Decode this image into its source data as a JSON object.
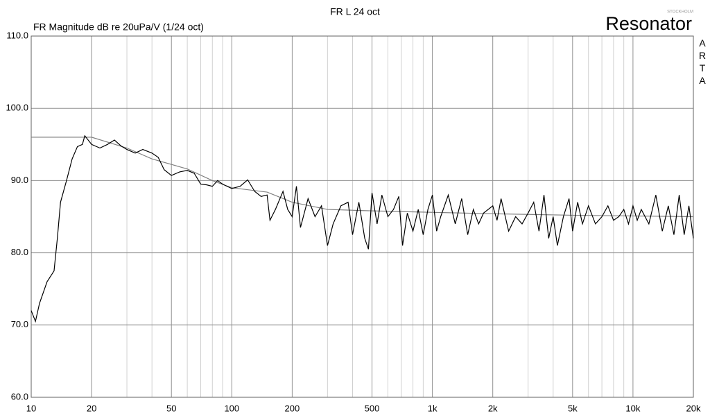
{
  "chart_data": {
    "type": "line",
    "title": "FR L  24 oct",
    "ylabel": "FR Magnitude dB re 20uPa/V (1/24 oct)",
    "brand": "Resonator",
    "brand_sub": "STOCKHOLM",
    "side_label": "ARTA",
    "xscale": "log",
    "grid": true,
    "xlim": [
      10,
      20000
    ],
    "ylim": [
      60,
      110
    ],
    "xticks": [
      10,
      20,
      50,
      100,
      200,
      500,
      {
        "value": 1000,
        "label": "1k"
      },
      {
        "value": 2000,
        "label": "2k"
      },
      {
        "value": 5000,
        "label": "5k"
      },
      {
        "value": 10000,
        "label": "10k"
      },
      {
        "value": 20000,
        "label": "20k"
      }
    ],
    "xminor_ticks": [
      30,
      40,
      60,
      70,
      80,
      90,
      300,
      400,
      600,
      700,
      800,
      900,
      3000,
      4000,
      6000,
      7000,
      8000,
      9000
    ],
    "yticks": [
      {
        "value": 60,
        "label": "60.0"
      },
      {
        "value": 70,
        "label": "70.0"
      },
      {
        "value": 80,
        "label": "80.0"
      },
      {
        "value": 90,
        "label": "90.0"
      },
      {
        "value": 100,
        "label": "100.0"
      },
      {
        "value": 110,
        "label": "110.0"
      }
    ],
    "series": [
      {
        "color": "#808080",
        "x": [
          10,
          20,
          30,
          40,
          60,
          80,
          100,
          150,
          200,
          300,
          500,
          1000,
          2000,
          5000,
          20000
        ],
        "values": [
          96,
          96,
          94.5,
          93,
          91.6,
          90,
          89,
          88.4,
          87,
          86,
          85.8,
          85.6,
          85.4,
          85.2,
          85
        ]
      },
      {
        "color": "#000000",
        "x": [
          10,
          10.5,
          11,
          12,
          13,
          13.5,
          14,
          15,
          16,
          17,
          18,
          18.5,
          20,
          22,
          24,
          26,
          28,
          30,
          33,
          36,
          40,
          43,
          46,
          50,
          55,
          60,
          65,
          70,
          75,
          80,
          85,
          90,
          100,
          110,
          120,
          130,
          140,
          150,
          155,
          165,
          180,
          190,
          200,
          210,
          220,
          240,
          260,
          280,
          300,
          320,
          350,
          380,
          400,
          430,
          460,
          480,
          500,
          530,
          560,
          600,
          640,
          680,
          710,
          750,
          800,
          850,
          900,
          950,
          1000,
          1050,
          1100,
          1200,
          1300,
          1400,
          1500,
          1600,
          1700,
          1800,
          2000,
          2100,
          2200,
          2400,
          2600,
          2800,
          3000,
          3200,
          3400,
          3600,
          3800,
          4000,
          4200,
          4500,
          4800,
          5000,
          5300,
          5600,
          6000,
          6500,
          7000,
          7500,
          8000,
          8500,
          9000,
          9500,
          10000,
          10500,
          11000,
          12000,
          13000,
          14000,
          15000,
          16000,
          17000,
          18000,
          19000,
          20000
        ],
        "values": [
          72,
          70.5,
          73,
          76,
          77.5,
          82,
          87,
          90,
          93,
          94.7,
          95,
          96.2,
          95,
          94.5,
          95,
          95.6,
          94.8,
          94.3,
          93.8,
          94.3,
          93.8,
          93.2,
          91.5,
          90.7,
          91.2,
          91.4,
          91,
          89.5,
          89.4,
          89.2,
          90,
          89.5,
          88.9,
          89.2,
          90.1,
          88.5,
          87.8,
          88,
          84.5,
          86,
          88.5,
          86,
          85,
          89.2,
          83.5,
          87.5,
          85,
          86.5,
          81,
          84,
          86.5,
          87,
          82.5,
          87,
          82,
          80.5,
          88.3,
          84,
          88,
          85,
          86,
          87.8,
          81,
          85.5,
          83,
          86,
          82.5,
          86,
          88,
          83,
          85,
          88,
          84,
          87.5,
          82.5,
          86,
          84,
          85.5,
          86.5,
          84.5,
          87.5,
          83,
          85,
          84,
          85.5,
          87,
          83,
          88,
          82,
          85,
          81,
          85,
          87.5,
          83,
          87,
          84,
          86.5,
          84,
          85,
          86.5,
          84.5,
          85,
          86,
          84,
          86.5,
          84.5,
          86,
          84,
          88,
          83,
          86.5,
          82.5,
          88,
          82.5,
          86.5,
          82
        ]
      }
    ]
  }
}
